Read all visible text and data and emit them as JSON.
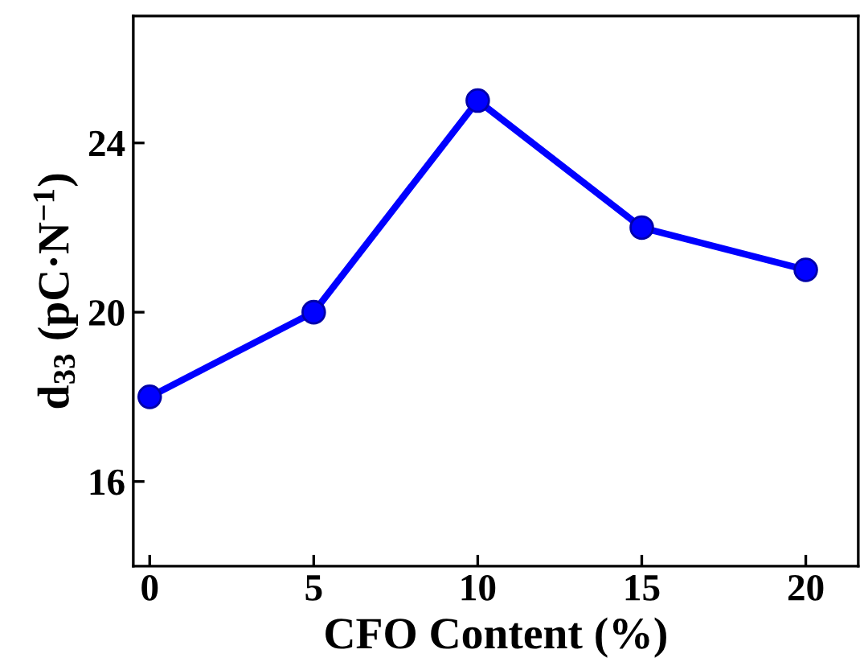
{
  "chart_data": {
    "type": "line",
    "xlabel": "CFO Content (%)",
    "ylabel": "d$_{33}$ (pC·N$^{−1}$)",
    "x": [
      0,
      5,
      10,
      15,
      20
    ],
    "series": [
      {
        "color": "#0000ff",
        "values": [
          18,
          20,
          25,
          22,
          21
        ]
      }
    ],
    "xlim": [
      -0.5,
      21.6
    ],
    "ylim": [
      14,
      27
    ],
    "xticks": [
      0,
      5,
      10,
      15,
      20
    ],
    "yticks": [
      16,
      20,
      24
    ],
    "marker": "circle",
    "line_style": "solid",
    "grid": false,
    "legend": false
  }
}
